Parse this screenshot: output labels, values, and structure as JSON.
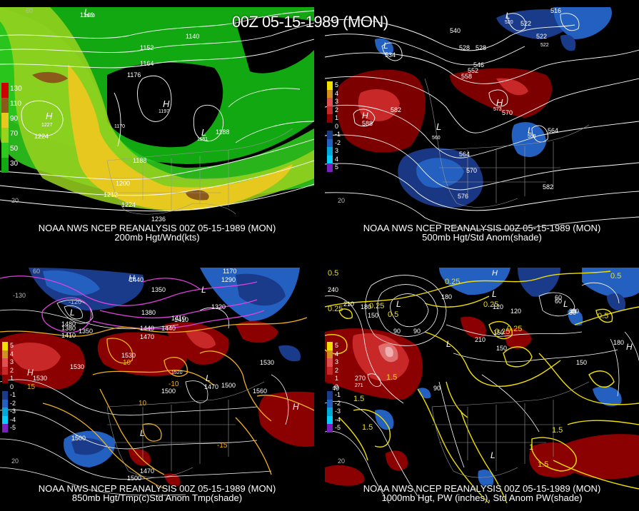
{
  "title": "00Z 05-15-1989 (MON)",
  "panels": [
    {
      "caption_1": "NOAA NWS NCEP REANALYSIS 00Z 05-15-1989 (MON)",
      "caption_2": "200mb Hgt/Wnd(kts)",
      "legend": [
        {
          "label": "130",
          "color": "#cc0000"
        },
        {
          "label": "110",
          "color": "#8b5a1a"
        },
        {
          "label": "90",
          "color": "#e6c81e"
        },
        {
          "label": "70",
          "color": "#9ad21e"
        },
        {
          "label": "50",
          "color": "#2ec81e"
        },
        {
          "label": "30",
          "color": "#12a812"
        }
      ],
      "contour_labels": [
        "1140",
        "1140",
        "1152",
        "1164",
        "1176",
        "1170",
        "1188",
        "1188",
        "1224",
        "1200",
        "1212",
        "1224",
        "1236",
        "1197",
        "1181",
        "1227",
        "1170"
      ],
      "center_marks": [
        "L",
        "H",
        "H",
        "L"
      ],
      "lat_labels": [
        "60",
        "20"
      ]
    },
    {
      "caption_1": "NOAA NWS NCEP REANALYSIS 00Z 05-15-1989 (MON)",
      "caption_2": "500mb Hgt/Std Anom(shade)",
      "legend": [
        {
          "label": "5",
          "color": "#f0e000"
        },
        {
          "label": "4",
          "color": "#d09020"
        },
        {
          "label": "3",
          "color": "#e05050"
        },
        {
          "label": "2",
          "color": "#c82828"
        },
        {
          "label": "1",
          "color": "#8b0000"
        },
        {
          "label": "0",
          "color": "#000000"
        },
        {
          "label": "-1",
          "color": "#1a3a8a"
        },
        {
          "label": "-2",
          "color": "#2460c0"
        },
        {
          "label": "3",
          "color": "#00a8d8"
        },
        {
          "label": "4",
          "color": "#00d0ff"
        },
        {
          "label": "5",
          "color": "#7a20c0"
        }
      ],
      "contour_labels": [
        "534",
        "528",
        "540",
        "528",
        "522",
        "516",
        "522",
        "522",
        "546",
        "552",
        "558",
        "582",
        "588",
        "570",
        "560",
        "564",
        "570",
        "576",
        "582",
        "558",
        "564",
        "573",
        "520"
      ],
      "center_marks": [
        "L",
        "H",
        "H",
        "L",
        "L",
        "L"
      ],
      "lat_labels": [
        "20"
      ]
    },
    {
      "caption_1": "NOAA NWS NCEP REANALYSIS 00Z 05-15-1989 (MON)",
      "caption_2": "850mb Hgt/Tmp(c)Std Anom Tmp(shade)",
      "legend": [
        {
          "label": "5",
          "color": "#f0e000"
        },
        {
          "label": "4",
          "color": "#d09020"
        },
        {
          "label": "3",
          "color": "#e05050"
        },
        {
          "label": "2",
          "color": "#c82828"
        },
        {
          "label": "1",
          "color": "#8b0000"
        },
        {
          "label": "0",
          "color": "#000000"
        },
        {
          "label": "-1",
          "color": "#1a3a8a"
        },
        {
          "label": "-2",
          "color": "#2460c0"
        },
        {
          "label": "-3",
          "color": "#00a8d8"
        },
        {
          "label": "-4",
          "color": "#00d0ff"
        },
        {
          "label": "-5",
          "color": "#7a20c0"
        }
      ],
      "contour_labels": [
        "1440",
        "1350",
        "1380",
        "1410",
        "1440",
        "1470",
        "1530",
        "1530",
        "1500",
        "1500",
        "1470",
        "1530",
        "1560",
        "1500",
        "1470",
        "1320",
        "1290",
        "1170",
        "1440",
        "1410",
        "1350",
        "1380",
        "1520",
        "1410",
        "1530",
        "1500",
        "1480"
      ],
      "temp_labels": [
        "10",
        "10",
        "-10",
        "-15",
        "15"
      ],
      "center_marks": [
        "H",
        "H",
        "L",
        "L",
        "L",
        "H",
        "L"
      ],
      "lat_labels": [
        "60",
        "-130",
        "-120",
        "20"
      ]
    },
    {
      "caption_1": "NOAA NWS NCEP REANALYSIS 00Z 05-15-1989 (MON)",
      "caption_2": "1000mb Hgt, PW (inches), Std Anom PW(shade)",
      "legend": [
        {
          "label": "5",
          "color": "#f0e000"
        },
        {
          "label": "4",
          "color": "#d09020"
        },
        {
          "label": "3",
          "color": "#e05050"
        },
        {
          "label": "2",
          "color": "#c82828"
        },
        {
          "label": "1",
          "color": "#8b0000"
        },
        {
          "label": "0",
          "color": "#000000"
        },
        {
          "label": "-1",
          "color": "#1a3a8a"
        },
        {
          "label": "-2",
          "color": "#2460c0"
        },
        {
          "label": "-3",
          "color": "#00a8d8"
        },
        {
          "label": "-4",
          "color": "#00d0ff"
        },
        {
          "label": "-5",
          "color": "#7a20c0"
        }
      ],
      "contour_labels": [
        "240",
        "210",
        "180",
        "150",
        "120",
        "90",
        "60",
        "30",
        "180",
        "150",
        "240",
        "270",
        "271",
        "90",
        "210",
        "120",
        "90",
        "150",
        "180",
        "60",
        "30",
        "150",
        "30"
      ],
      "pw_labels": [
        "0.5",
        "0.25",
        "0.25",
        "0.5",
        "1.5",
        "1.5",
        "1.5",
        "1.5",
        "0.25",
        "0.25",
        "0.5",
        "0.25",
        "1",
        "1.5",
        "0.5",
        "0.25"
      ],
      "center_marks": [
        "H",
        "L",
        "L",
        "L",
        "H",
        "L",
        "L"
      ],
      "lat_labels": [
        "20"
      ]
    }
  ]
}
